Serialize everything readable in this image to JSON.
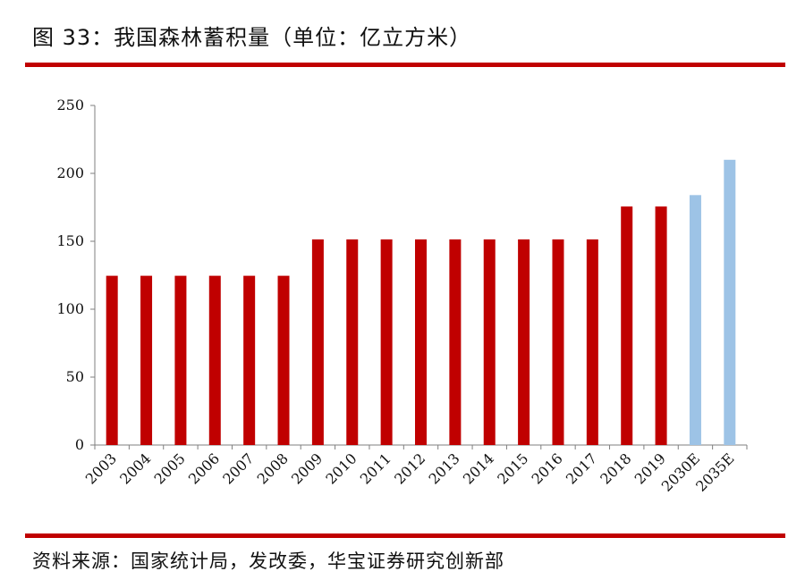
{
  "header": {
    "title": "图 33：我国森林蓄积量（单位：亿立方米）"
  },
  "footer": {
    "source": "资料来源：国家统计局，发改委，华宝证券研究创新部"
  },
  "colors": {
    "rule": "#c00000",
    "actual": "#c00000",
    "estimate": "#9dc3e6",
    "axis": "#7f7f7f"
  },
  "chart_data": {
    "type": "bar",
    "categories": [
      "2003",
      "2004",
      "2005",
      "2006",
      "2007",
      "2008",
      "2009",
      "2010",
      "2011",
      "2012",
      "2013",
      "2014",
      "2015",
      "2016",
      "2017",
      "2018",
      "2019",
      "2030E",
      "2035E"
    ],
    "series": [
      {
        "values": [
          124.6,
          124.6,
          124.6,
          124.6,
          124.6,
          124.6,
          151.4,
          151.4,
          151.4,
          151.4,
          151.4,
          151.4,
          151.4,
          151.4,
          151.4,
          175.6,
          175.6,
          184,
          210
        ],
        "estimate_from_index": 17
      }
    ],
    "yticks": [
      0,
      50,
      100,
      150,
      200,
      250
    ],
    "ylim": [
      0,
      250
    ],
    "grid": false,
    "legend": "none"
  }
}
